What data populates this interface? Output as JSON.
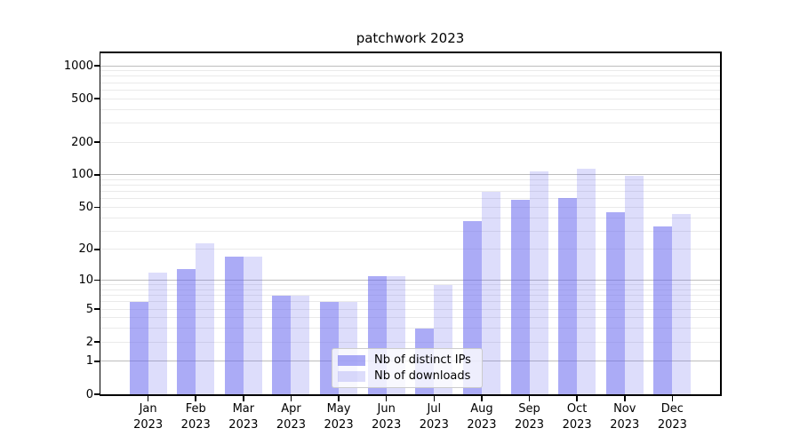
{
  "chart_data": {
    "type": "bar",
    "title": "patchwork 2023",
    "categories": [
      "Jan",
      "Feb",
      "Mar",
      "Apr",
      "May",
      "Jun",
      "Jul",
      "Aug",
      "Sep",
      "Oct",
      "Nov",
      "Dec"
    ],
    "category_year_label": "2023",
    "series": [
      {
        "name": "Nb of distinct IPs",
        "color": "#6666ee",
        "opacity": 0.55,
        "values": [
          6,
          13,
          17,
          7,
          6,
          11,
          3,
          37,
          59,
          61,
          45,
          33
        ]
      },
      {
        "name": "Nb of downloads",
        "color": "#6666ee",
        "opacity": 0.22,
        "values": [
          12,
          23,
          17,
          7,
          6,
          11,
          9,
          70,
          108,
          113,
          98,
          43
        ]
      }
    ],
    "yscale": "symlog",
    "ylim": [
      0,
      1300
    ],
    "ytick_labels": [
      "0",
      "1",
      "2",
      "5",
      "10",
      "20",
      "50",
      "100",
      "200",
      "500",
      "1000"
    ],
    "ytick_values": [
      0,
      1,
      2,
      5,
      10,
      20,
      50,
      100,
      200,
      500,
      1000
    ],
    "major_gridlines": [
      1,
      10,
      100,
      1000
    ],
    "minor_gridlines": [
      2,
      3,
      4,
      5,
      6,
      7,
      8,
      9,
      20,
      30,
      40,
      50,
      60,
      70,
      80,
      90,
      200,
      300,
      400,
      500,
      600,
      700,
      800,
      900
    ],
    "grid": true,
    "legend_position": "lower center"
  },
  "colors": {
    "background": "#ffffff",
    "bar_base": "#6666ee",
    "major_grid": "#bdbdbd",
    "minor_grid": "#eaeaea",
    "spine": "#000000",
    "text": "#000000",
    "legend_border": "#cccccc",
    "legend_background": "rgba(255,255,255,0.8)"
  }
}
